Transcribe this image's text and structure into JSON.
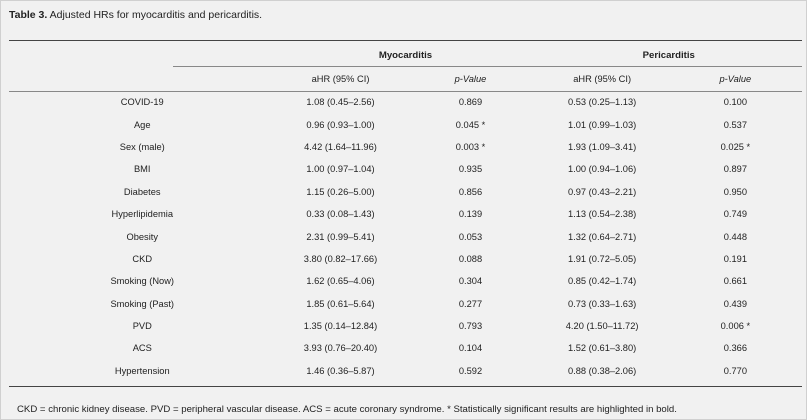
{
  "caption": {
    "label": "Table 3.",
    "text": "Adjusted HRs for myocarditis and pericarditis."
  },
  "headers": {
    "group_myocarditis": "Myocarditis",
    "group_pericarditis": "Pericarditis",
    "ahr": "aHR (95% CI)",
    "pvalue": "p-Value"
  },
  "rows": [
    {
      "label": "COVID-19",
      "m_ahr": "1.08 (0.45–2.56)",
      "m_p": "0.869",
      "p_ahr": "0.53 (0.25–1.13)",
      "p_p": "0.100",
      "m_ahr_bold": false,
      "m_p_bold": false,
      "p_ahr_bold": false,
      "p_p_bold": false
    },
    {
      "label": "Age",
      "m_ahr": "0.96 (0.93–1.00)",
      "m_p": "0.045 *",
      "p_ahr": "1.01 (0.99–1.03)",
      "p_p": "0.537",
      "m_ahr_bold": true,
      "m_p_bold": true,
      "p_ahr_bold": false,
      "p_p_bold": false
    },
    {
      "label": "Sex (male)",
      "m_ahr": "4.42 (1.64–11.96)",
      "m_p": "0.003 *",
      "p_ahr": "1.93 (1.09–3.41)",
      "p_p": "0.025 *",
      "m_ahr_bold": true,
      "m_p_bold": true,
      "p_ahr_bold": true,
      "p_p_bold": true
    },
    {
      "label": "BMI",
      "m_ahr": "1.00 (0.97–1.04)",
      "m_p": "0.935",
      "p_ahr": "1.00 (0.94–1.06)",
      "p_p": "0.897",
      "m_ahr_bold": false,
      "m_p_bold": false,
      "p_ahr_bold": false,
      "p_p_bold": false
    },
    {
      "label": "Diabetes",
      "m_ahr": "1.15 (0.26–5.00)",
      "m_p": "0.856",
      "p_ahr": "0.97 (0.43–2.21)",
      "p_p": "0.950",
      "m_ahr_bold": false,
      "m_p_bold": false,
      "p_ahr_bold": false,
      "p_p_bold": false
    },
    {
      "label": "Hyperlipidemia",
      "m_ahr": "0.33 (0.08–1.43)",
      "m_p": "0.139",
      "p_ahr": "1.13 (0.54–2.38)",
      "p_p": "0.749",
      "m_ahr_bold": false,
      "m_p_bold": false,
      "p_ahr_bold": false,
      "p_p_bold": false
    },
    {
      "label": "Obesity",
      "m_ahr": "2.31 (0.99–5.41)",
      "m_p": "0.053",
      "p_ahr": "1.32 (0.64–2.71)",
      "p_p": "0.448",
      "m_ahr_bold": false,
      "m_p_bold": false,
      "p_ahr_bold": false,
      "p_p_bold": false
    },
    {
      "label": "CKD",
      "m_ahr": "3.80 (0.82–17.66)",
      "m_p": "0.088",
      "p_ahr": "1.91 (0.72–5.05)",
      "p_p": "0.191",
      "m_ahr_bold": false,
      "m_p_bold": false,
      "p_ahr_bold": false,
      "p_p_bold": false
    },
    {
      "label": "Smoking (Now)",
      "m_ahr": "1.62 (0.65–4.06)",
      "m_p": "0.304",
      "p_ahr": "0.85 (0.42–1.74)",
      "p_p": "0.661",
      "m_ahr_bold": false,
      "m_p_bold": false,
      "p_ahr_bold": false,
      "p_p_bold": false
    },
    {
      "label": "Smoking (Past)",
      "m_ahr": "1.85 (0.61–5.64)",
      "m_p": "0.277",
      "p_ahr": "0.73 (0.33–1.63)",
      "p_p": "0.439",
      "m_ahr_bold": false,
      "m_p_bold": false,
      "p_ahr_bold": false,
      "p_p_bold": false
    },
    {
      "label": "PVD",
      "m_ahr": "1.35 (0.14–12.84)",
      "m_p": "0.793",
      "p_ahr": "4.20 (1.50–11.72)",
      "p_p": "0.006 *",
      "m_ahr_bold": false,
      "m_p_bold": false,
      "p_ahr_bold": true,
      "p_p_bold": true
    },
    {
      "label": "ACS",
      "m_ahr": "3.93 (0.76–20.40)",
      "m_p": "0.104",
      "p_ahr": "1.52 (0.61–3.80)",
      "p_p": "0.366",
      "m_ahr_bold": false,
      "m_p_bold": false,
      "p_ahr_bold": false,
      "p_p_bold": false
    },
    {
      "label": "Hypertension",
      "m_ahr": "1.46 (0.36–5.87)",
      "m_p": "0.592",
      "p_ahr": "0.88 (0.38–2.06)",
      "p_p": "0.770",
      "m_ahr_bold": false,
      "m_p_bold": false,
      "p_ahr_bold": false,
      "p_p_bold": false
    }
  ],
  "footnote": "CKD = chronic kidney disease. PVD = peripheral vascular disease. ACS = acute coronary syndrome. * Statistically significant results are highlighted in bold."
}
